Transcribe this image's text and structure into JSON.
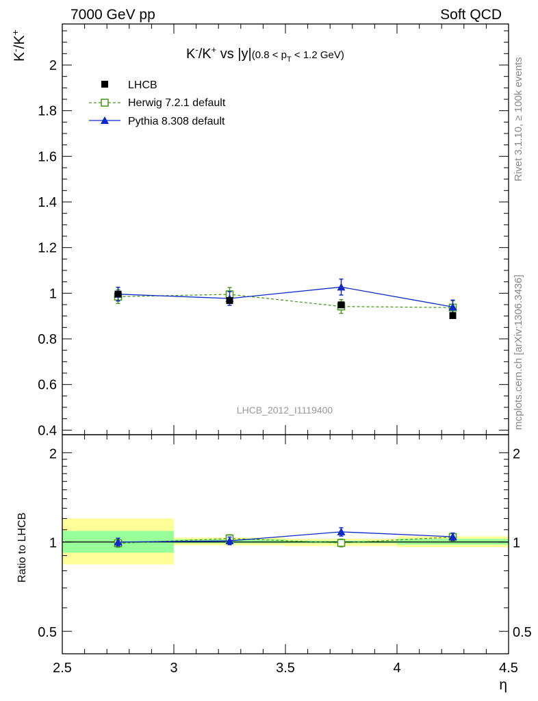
{
  "header": {
    "left": "7000 GeV pp",
    "right": "Soft QCD"
  },
  "side_labels": {
    "rivet": "Rivet 3.1.10, ≥ 100k events",
    "mcplots": "mcplots.cern.ch [arXiv:1306.3436]"
  },
  "chart_data": [
    {
      "type": "scatter",
      "title_parts": {
        "prefix": "K",
        "sup1": "-",
        "slash": "/K",
        "sup2": "+",
        "vs": " vs |y|",
        "cut_open": "(0.8 < p",
        "cut_sub": "T",
        "cut_close": " < 1.2 GeV)"
      },
      "ylabel_parts": {
        "base1": "K",
        "sup1": "-",
        "base2": "/K",
        "sup2": "+"
      },
      "watermark": "LHCB_2012_I1119400",
      "xlim": [
        2.5,
        4.5
      ],
      "ylim": [
        0.38,
        2.18
      ],
      "yticks": [
        0.4,
        0.6,
        0.8,
        1,
        1.2,
        1.4,
        1.6,
        1.8,
        2
      ],
      "ytick_labels": [
        "0.4",
        "0.6",
        "0.8",
        "1",
        "1.2",
        "1.4",
        "1.6",
        "1.8",
        "2"
      ],
      "legend_position": "top-left",
      "series": [
        {
          "name": "LHCB",
          "style": "data",
          "color": "#000000",
          "x": [
            2.75,
            3.25,
            3.75,
            4.25
          ],
          "y": [
            0.996,
            0.968,
            0.949,
            0.902
          ],
          "xerr": 0.25,
          "yerr": [
            0.012,
            0.01,
            0.012,
            0.01
          ]
        },
        {
          "name": "Herwig 7.2.1 default",
          "style": "herwig",
          "color": "#4a9a1e",
          "x": [
            2.75,
            3.25,
            3.75,
            4.25
          ],
          "y": [
            0.985,
            0.995,
            0.942,
            0.937
          ],
          "yerr": [
            0.03,
            0.03,
            0.03,
            0.03
          ]
        },
        {
          "name": "Pythia 8.308 default",
          "style": "pythia",
          "color": "#0a28c8",
          "x": [
            2.75,
            3.25,
            3.75,
            4.25
          ],
          "y": [
            0.996,
            0.977,
            1.027,
            0.94
          ],
          "yerr": [
            0.03,
            0.03,
            0.035,
            0.03
          ]
        }
      ]
    },
    {
      "type": "scatter",
      "ylabel": "Ratio to LHCB",
      "xlabel": "η",
      "scale": "log",
      "xlim": [
        2.5,
        4.5
      ],
      "ylim": [
        0.42,
        2.3
      ],
      "yticks": [
        0.5,
        1,
        2
      ],
      "ytick_labels": [
        "0.5",
        "1",
        "2"
      ],
      "xticks": [
        2.5,
        3,
        3.5,
        4,
        4.5
      ],
      "xtick_labels": [
        "2.5",
        "3",
        "3.5",
        "4",
        "4.5"
      ],
      "bands": [
        {
          "x0": 2.5,
          "x1": 3.0,
          "inner": [
            0.92,
            1.09
          ],
          "outer": [
            0.84,
            1.2
          ]
        },
        {
          "x0": 3.0,
          "x1": 3.5,
          "inner": [
            0.99,
            1.02
          ],
          "outer": [
            0.975,
            1.035
          ]
        },
        {
          "x0": 3.5,
          "x1": 4.0,
          "inner": [
            0.99,
            1.01
          ],
          "outer": [
            0.97,
            1.025
          ]
        },
        {
          "x0": 4.0,
          "x1": 4.5,
          "inner": [
            0.98,
            1.025
          ],
          "outer": [
            0.96,
            1.045
          ]
        }
      ],
      "series": [
        {
          "name": "Herwig 7.2.1 default",
          "style": "herwig",
          "color": "#4a9a1e",
          "x": [
            2.75,
            3.25,
            3.75,
            4.25
          ],
          "y": [
            0.99,
            1.028,
            0.993,
            1.039
          ],
          "yerr": [
            0.03,
            0.03,
            0.03,
            0.03
          ]
        },
        {
          "name": "Pythia 8.308 default",
          "style": "pythia",
          "color": "#0a28c8",
          "x": [
            2.75,
            3.25,
            3.75,
            4.25
          ],
          "y": [
            1.0,
            1.009,
            1.082,
            1.042
          ],
          "yerr": [
            0.03,
            0.03,
            0.035,
            0.03
          ]
        }
      ]
    }
  ],
  "colors": {
    "band_inner": "#99ff99",
    "band_outer": "#ffff99"
  }
}
